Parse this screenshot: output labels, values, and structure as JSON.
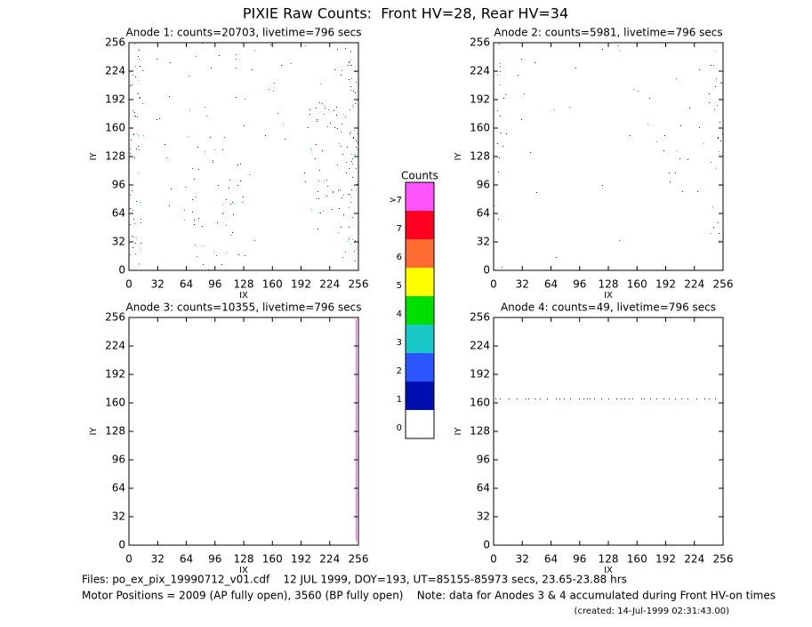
{
  "title": "PIXIE Raw Counts:  Front HV=28, Rear HV=34",
  "chart_data": [
    {
      "type": "heatmap",
      "title": "Anode 1: counts=20703, livetime=796 secs",
      "xlabel": "IX",
      "ylabel": "IY",
      "xlim": [
        0,
        256
      ],
      "ylim": [
        0,
        256
      ],
      "xticks": [
        0,
        32,
        64,
        96,
        128,
        160,
        192,
        224,
        256
      ],
      "yticks": [
        0,
        32,
        64,
        96,
        128,
        160,
        192,
        224,
        256
      ]
    },
    {
      "type": "heatmap",
      "title": "Anode 2: counts=5981, livetime=796 secs",
      "xlabel": "IX",
      "ylabel": "IY",
      "xlim": [
        0,
        256
      ],
      "ylim": [
        0,
        256
      ],
      "xticks": [
        0,
        32,
        64,
        96,
        128,
        160,
        192,
        224,
        256
      ],
      "yticks": [
        0,
        32,
        64,
        96,
        128,
        160,
        192,
        224,
        256
      ]
    },
    {
      "type": "heatmap",
      "title": "Anode 3: counts=10355, livetime=796 secs",
      "xlabel": "IX",
      "ylabel": "IY",
      "xlim": [
        0,
        256
      ],
      "ylim": [
        0,
        256
      ],
      "xticks": [
        0,
        32,
        64,
        96,
        128,
        160,
        192,
        224,
        256
      ],
      "yticks": [
        0,
        32,
        64,
        96,
        128,
        160,
        192,
        224,
        256
      ]
    },
    {
      "type": "heatmap",
      "title": "Anode 4: counts=49, livetime=796 secs",
      "xlabel": "IX",
      "ylabel": "IY",
      "xlim": [
        0,
        256
      ],
      "ylim": [
        0,
        256
      ],
      "xticks": [
        0,
        32,
        64,
        96,
        128,
        160,
        192,
        224,
        256
      ],
      "yticks": [
        0,
        32,
        64,
        96,
        128,
        160,
        192,
        224,
        256
      ]
    }
  ],
  "colorbar": {
    "title": "Counts",
    "levels": [
      {
        "label": "0",
        "color": "#ffffff"
      },
      {
        "label": "1",
        "color": "#0010b0"
      },
      {
        "label": "2",
        "color": "#2a55ff"
      },
      {
        "label": "3",
        "color": "#19c8c8"
      },
      {
        "label": "4",
        "color": "#00e000"
      },
      {
        "label": "5",
        "color": "#ffff00"
      },
      {
        "label": "6",
        "color": "#ff6a30"
      },
      {
        "label": "7",
        "color": "#ff0020"
      },
      {
        "label": ">7",
        "color": "#ff55ff"
      }
    ]
  },
  "footer": {
    "files": "Files: po_ex_pix_19990712_v01.cdf    12 JUL 1999, DOY=193, UT=85155-85973 secs, 23.65-23.88 hrs",
    "motor": "Motor Positions = 2009 (AP fully open), 3560 (BP fully open)    Note: data for Anodes 3 & 4 accumulated during Front HV-on times",
    "created": "(created: 14-Jul-1999 02:31:43.00)"
  }
}
